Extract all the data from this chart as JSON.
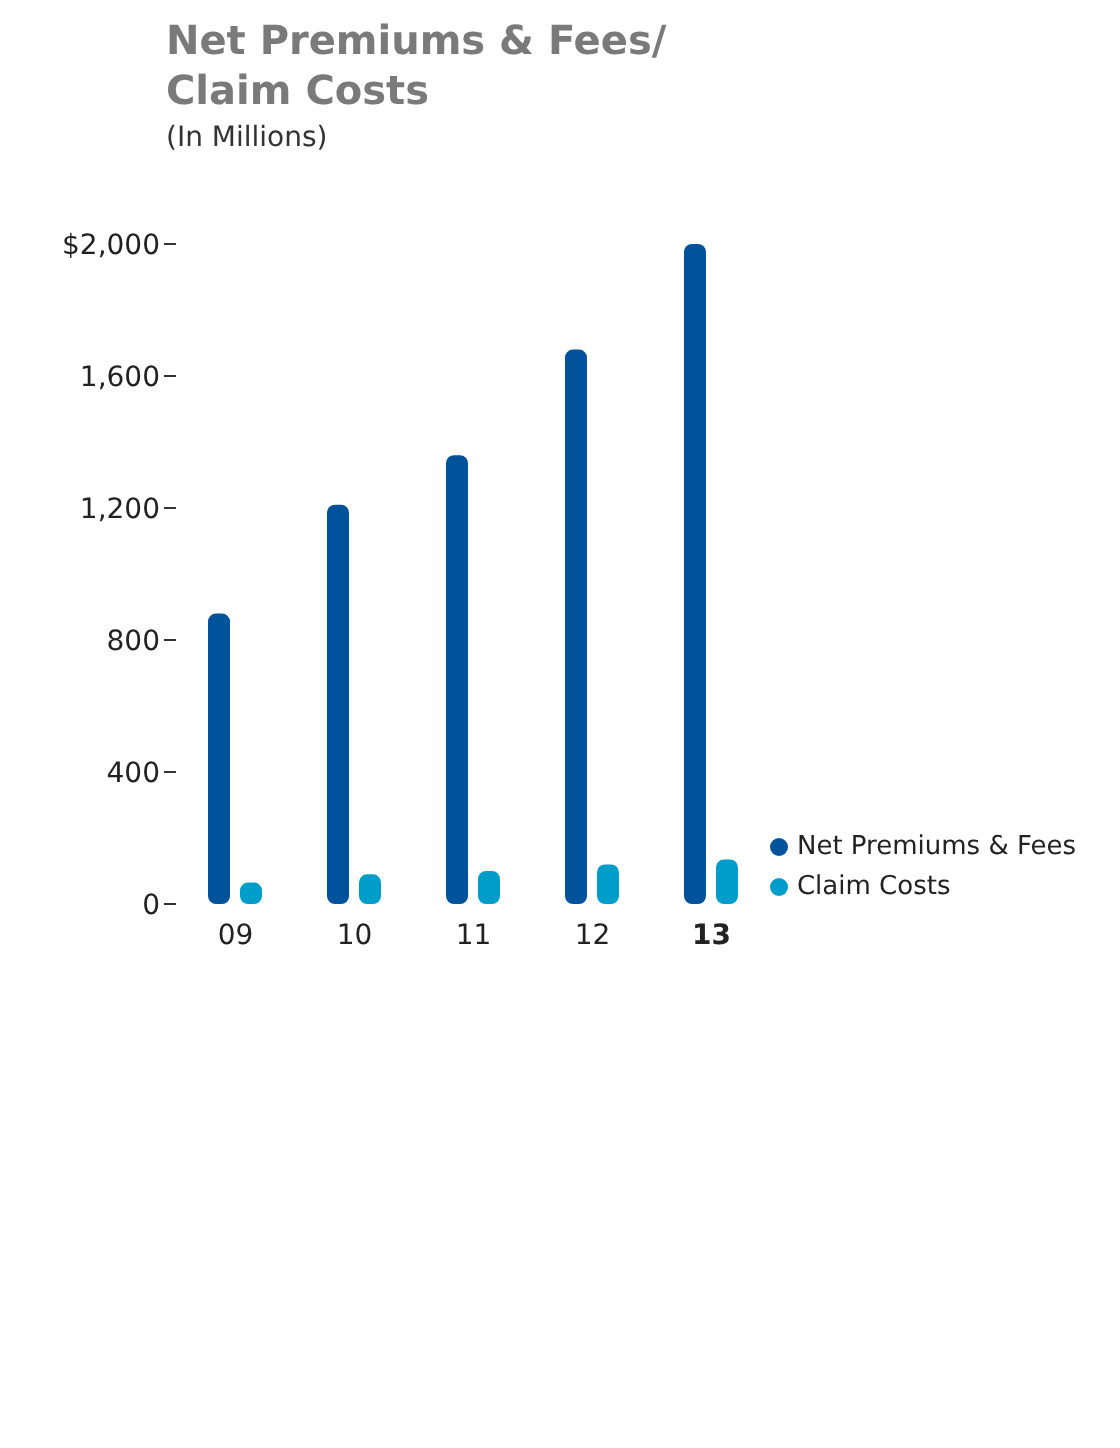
{
  "chart_data": {
    "type": "bar",
    "title": "Net Premiums & Fees/\nClaim Costs",
    "subtitle": "(In Millions)",
    "categories": [
      "09",
      "10",
      "11",
      "12",
      "13"
    ],
    "series": [
      {
        "name": "Net Premiums & Fees",
        "color": "#00529b",
        "values": [
          880,
          1210,
          1360,
          1680,
          2000
        ]
      },
      {
        "name": "Claim Costs",
        "color": "#009dcb",
        "values": [
          65,
          90,
          100,
          120,
          135
        ]
      }
    ],
    "ylim": [
      0,
      2000
    ],
    "yticks": [
      {
        "value": 0,
        "label": "0"
      },
      {
        "value": 400,
        "label": "400"
      },
      {
        "value": 800,
        "label": "800"
      },
      {
        "value": 1200,
        "label": "1,200"
      },
      {
        "value": 1600,
        "label": "1,600"
      },
      {
        "value": 2000,
        "label": "$2,000"
      }
    ],
    "grid": false,
    "legend": "right"
  }
}
